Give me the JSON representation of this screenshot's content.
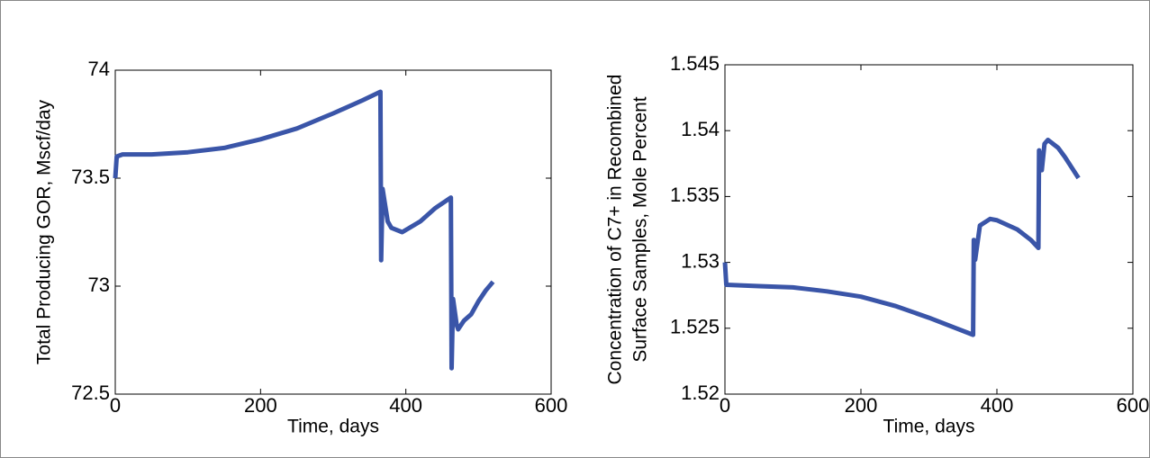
{
  "chart_data": [
    {
      "type": "line",
      "ylabel": [
        "Total Producing GOR, Mscf/day"
      ],
      "xlabel": "Time, days",
      "xlim": [
        0,
        600
      ],
      "xticks": [
        0,
        200,
        400,
        600
      ],
      "ylim": [
        72.5,
        74
      ],
      "yticks": [
        72.5,
        73,
        73.5,
        74
      ],
      "x": [
        0,
        2,
        10,
        50,
        100,
        150,
        200,
        250,
        300,
        340,
        365,
        366,
        368,
        375,
        380,
        395,
        420,
        440,
        462,
        463,
        465,
        470,
        472,
        480,
        490,
        500,
        510,
        520
      ],
      "series": [
        {
          "color": "#3a55a8",
          "values": [
            73.5,
            73.6,
            73.61,
            73.61,
            73.62,
            73.64,
            73.68,
            73.73,
            73.8,
            73.86,
            73.9,
            73.12,
            73.45,
            73.3,
            73.27,
            73.25,
            73.3,
            73.36,
            73.41,
            72.62,
            72.94,
            72.82,
            72.8,
            72.84,
            72.87,
            72.93,
            72.98,
            73.02
          ]
        }
      ]
    },
    {
      "type": "line",
      "ylabel": [
        "Concentration of C7+ in Recombined",
        "Surface Samples, Mole Percent"
      ],
      "xlabel": "Time, days",
      "xlim": [
        0,
        600
      ],
      "xticks": [
        0,
        200,
        400,
        600
      ],
      "ylim": [
        1.52,
        1.545
      ],
      "yticks": [
        1.52,
        1.525,
        1.53,
        1.535,
        1.54,
        1.545
      ],
      "x": [
        0,
        2,
        50,
        100,
        150,
        200,
        250,
        300,
        340,
        365,
        366,
        368,
        375,
        390,
        400,
        430,
        450,
        461,
        462,
        466,
        470,
        475,
        490,
        500,
        510,
        520
      ],
      "series": [
        {
          "color": "#3a55a8",
          "values": [
            1.53,
            1.5283,
            1.5282,
            1.5281,
            1.5278,
            1.5274,
            1.5267,
            1.5258,
            1.525,
            1.5245,
            1.5317,
            1.5302,
            1.5328,
            1.5333,
            1.5332,
            1.5325,
            1.5317,
            1.5311,
            1.5385,
            1.537,
            1.539,
            1.5393,
            1.5387,
            1.538,
            1.5372,
            1.5364
          ]
        }
      ]
    }
  ]
}
